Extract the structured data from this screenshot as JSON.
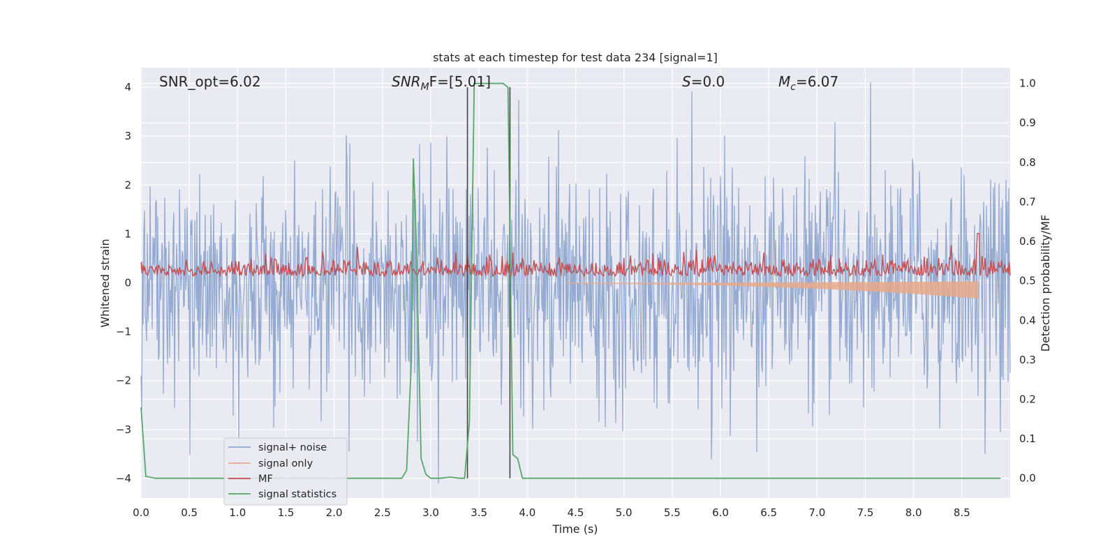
{
  "chart_data": {
    "type": "line",
    "title": "stats at each timestep for test data 234 [signal=1]",
    "xlabel": "Time (s)",
    "ylabel_left": "Whitened strain",
    "ylabel_right": "Detection probability/MF",
    "xlim": [
      0,
      9.0
    ],
    "ylim_left": [
      -4.4,
      4.4
    ],
    "ylim_right": [
      -0.05,
      1.04
    ],
    "x_ticks": [
      "0.0",
      "0.5",
      "1.0",
      "1.5",
      "2.0",
      "2.5",
      "3.0",
      "3.5",
      "4.0",
      "4.5",
      "5.0",
      "5.5",
      "6.0",
      "6.5",
      "7.0",
      "7.5",
      "8.0",
      "8.5"
    ],
    "y_ticks_left": [
      "4",
      "3",
      "2",
      "1",
      "0",
      "−1",
      "−2",
      "−3",
      "−4"
    ],
    "y_ticks_right": [
      "1.0",
      "0.9",
      "0.8",
      "0.7",
      "0.6",
      "0.5",
      "0.4",
      "0.3",
      "0.2",
      "0.1",
      "0.0"
    ],
    "grid": true,
    "legend_position": "lower-left",
    "annotations": {
      "snr_opt": "SNR_opt=6.02",
      "snr_mf_main": "SNR",
      "snr_mf_sub": "M",
      "snr_mf_rest": "F=[5.01]",
      "s_italic": "S",
      "s_rest": "=0.0",
      "mc_italic": "M",
      "mc_sub": "c",
      "mc_rest": "=6.07"
    },
    "vertical_lines_x": [
      3.38,
      3.82
    ],
    "series": [
      {
        "name": "signal+ noise",
        "color": "#8fa6cf",
        "description_values": "noise-like strain, roughly symmetric, amplitude mostly within ±2.5, peaks near ±4",
        "noise_amplitude": 1.15
      },
      {
        "name": "signal only",
        "color": "#e8a98a",
        "chirp": {
          "start_x": 4.4,
          "end_x": 8.67,
          "end_amplitude": 0.3
        }
      },
      {
        "name": "MF",
        "color": "#c44e52",
        "baseline_right_axis": 0.52,
        "spike": {
          "x": 8.67,
          "value": 0.62
        }
      },
      {
        "name": "signal statistics",
        "color": "#55a868",
        "x": [
          0.0,
          0.05,
          0.15,
          0.5,
          1.0,
          1.5,
          2.0,
          2.5,
          2.7,
          2.75,
          2.8,
          2.82,
          2.85,
          2.9,
          2.95,
          3.0,
          3.1,
          3.2,
          3.3,
          3.35,
          3.4,
          3.45,
          3.5,
          3.6,
          3.7,
          3.75,
          3.8,
          3.85,
          3.9,
          3.95,
          4.0,
          4.5,
          5.0,
          6.0,
          7.0,
          8.0,
          8.9
        ],
        "y": [
          0.18,
          0.005,
          0.0,
          0.0,
          0.0,
          0.0,
          0.0,
          0.0,
          0.0,
          0.02,
          0.3,
          0.81,
          0.6,
          0.05,
          0.01,
          0.0,
          0.0,
          0.003,
          0.0,
          0.0,
          0.14,
          1.0,
          1.0,
          1.0,
          1.0,
          1.0,
          0.99,
          0.06,
          0.05,
          0.0,
          0.0,
          0.0,
          0.0,
          0.0,
          0.0,
          0.0,
          0.0
        ]
      }
    ]
  }
}
